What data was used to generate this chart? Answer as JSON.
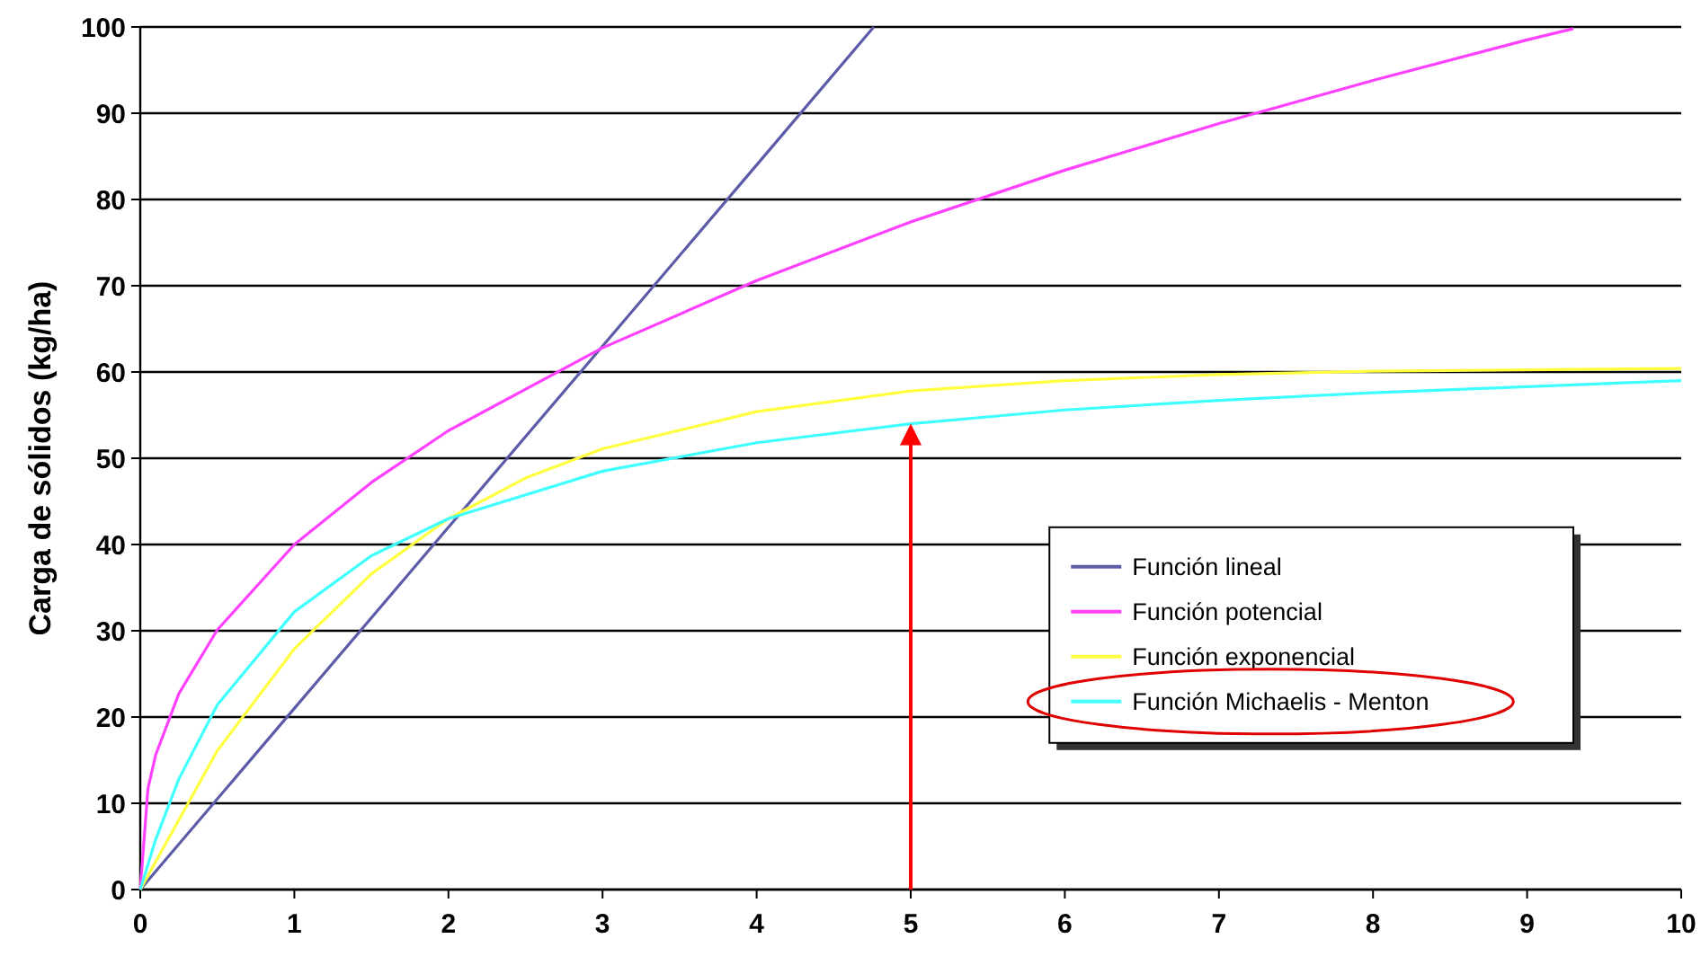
{
  "chart_data": {
    "type": "line",
    "ylabel": "Carga de sólidos (kg/ha)",
    "xlim": [
      0,
      10
    ],
    "xticks": [
      0,
      1,
      2,
      3,
      4,
      5,
      6,
      7,
      8,
      9,
      10
    ],
    "ylim": [
      0,
      100
    ],
    "yticks": [
      0,
      10,
      20,
      30,
      40,
      50,
      60,
      70,
      80,
      90,
      100
    ],
    "grid": "y",
    "legend": "right",
    "marker": "none",
    "line_style": "solid",
    "ref_lines": [
      {
        "axis": "x",
        "value": 5,
        "color": "#ff0000"
      }
    ],
    "series": [
      {
        "name": "Función lineal",
        "color": "#5b5ba8",
        "x": [
          0,
          1,
          2,
          3,
          4,
          4.76
        ],
        "values": [
          0,
          21,
          42,
          63,
          84,
          100
        ]
      },
      {
        "name": "Función potencial",
        "color": "#ff40ff",
        "x": [
          0,
          0.05,
          0.1,
          0.25,
          0.5,
          1,
          1.5,
          2,
          3,
          4,
          5,
          6,
          7,
          8,
          9,
          9.3
        ],
        "values": [
          0,
          11.7,
          15.6,
          22.7,
          30.1,
          40,
          47.2,
          53.2,
          62.8,
          70.6,
          77.4,
          83.4,
          88.8,
          93.8,
          98.5,
          99.8
        ]
      },
      {
        "name": "Función exponencial",
        "color": "#ffff40",
        "x": [
          0,
          0.5,
          1,
          1.5,
          2,
          2.5,
          3,
          4,
          5,
          6,
          7,
          8,
          10
        ],
        "values": [
          0,
          16.1,
          27.9,
          36.6,
          43,
          47.7,
          51.1,
          55.4,
          57.8,
          59,
          59.7,
          60.1,
          60.4
        ]
      },
      {
        "name": "Función Michaelis - Menton",
        "color": "#40ffff",
        "x": [
          0,
          0.1,
          0.25,
          0.5,
          1,
          1.5,
          2,
          3,
          4,
          5,
          6,
          7,
          8,
          10
        ],
        "values": [
          0,
          5.8,
          12.8,
          21.4,
          32.2,
          38.7,
          43,
          48.5,
          51.8,
          54,
          55.6,
          56.7,
          57.6,
          59
        ]
      }
    ]
  }
}
